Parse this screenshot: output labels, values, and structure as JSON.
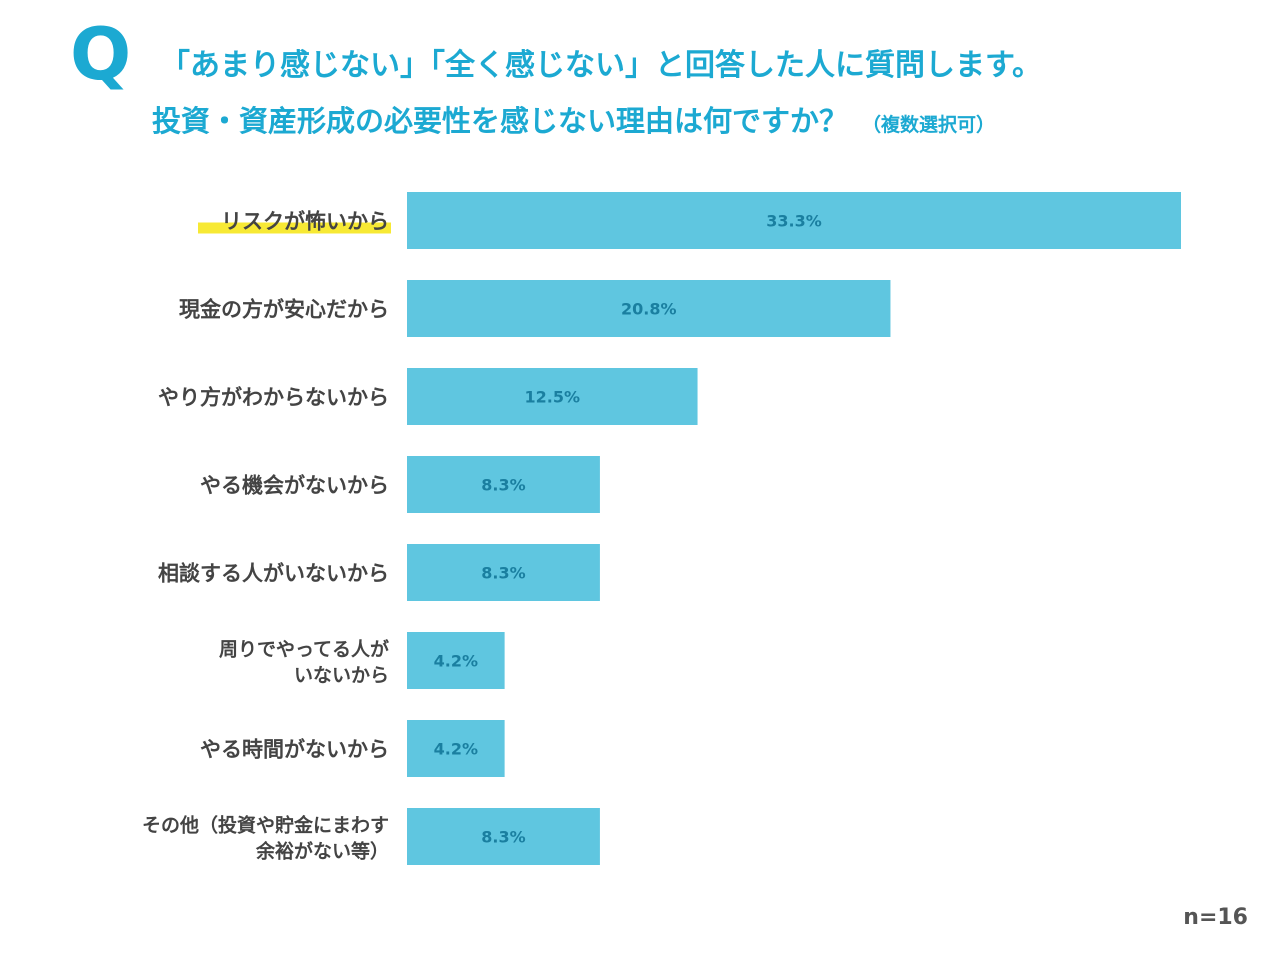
{
  "question_mark": "Q",
  "title": {
    "line1": "「あまり感じない」「全く感じない」と回答した人に質問します。",
    "line2": "投資・資産形成の必要性を感じない理由は何ですか？",
    "note": "（複数選択可）"
  },
  "sample_size": "n=16",
  "colors": {
    "bar": "#5fc6e0",
    "title": "#1ca9d2",
    "highlight": "#f7e934",
    "value_text": "#1a7fa0"
  },
  "chart_data": {
    "type": "bar",
    "orientation": "horizontal",
    "categories": [
      [
        "リスクが怖いから"
      ],
      [
        "現金の方が安心だから"
      ],
      [
        "やり方がわからないから"
      ],
      [
        "やる機会がないから"
      ],
      [
        "相談する人がいないから"
      ],
      [
        "周りでやってる人が",
        "いないから"
      ],
      [
        "やる時間がないから"
      ],
      [
        "その他（投資や貯金にまわす",
        "余裕がない等）"
      ]
    ],
    "values": [
      33.3,
      20.8,
      12.5,
      8.3,
      8.3,
      4.2,
      4.2,
      8.3
    ],
    "value_labels": [
      "33.3%",
      "20.8%",
      "12.5%",
      "8.3%",
      "8.3%",
      "4.2%",
      "4.2%",
      "8.3%"
    ],
    "highlighted_index": 0,
    "xlim": [
      0,
      33.3
    ],
    "grid": false,
    "legend": "none"
  }
}
